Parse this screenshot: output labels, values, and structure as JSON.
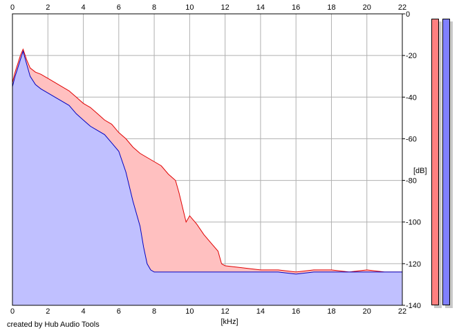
{
  "chart_data": {
    "type": "area",
    "title": "",
    "xlabel": "[kHz]",
    "ylabel": "[dB]",
    "xlim": [
      0,
      22
    ],
    "ylim": [
      -140,
      0
    ],
    "x_ticks": [
      0,
      2,
      4,
      6,
      8,
      10,
      12,
      14,
      16,
      18,
      20,
      22
    ],
    "y_ticks": [
      0,
      -20,
      -40,
      -60,
      -80,
      -100,
      -120,
      -140
    ],
    "grid": true,
    "series": [
      {
        "color": "#e00000",
        "fill": "#ffc0c0",
        "x": [
          0,
          0.15,
          0.3,
          0.45,
          0.6,
          0.8,
          1.0,
          1.3,
          1.6,
          2.0,
          2.4,
          2.8,
          3.2,
          3.6,
          4.0,
          4.4,
          4.8,
          5.2,
          5.6,
          6.0,
          6.4,
          6.8,
          7.2,
          7.6,
          8.0,
          8.4,
          8.8,
          9.2,
          9.4,
          9.6,
          9.8,
          10.0,
          10.4,
          10.8,
          11.2,
          11.6,
          11.8,
          12.0,
          13,
          14,
          15,
          16,
          17,
          18,
          19,
          20,
          21,
          22
        ],
        "values": [
          -33,
          -28,
          -24,
          -20,
          -17,
          -22,
          -26,
          -28,
          -29,
          -31,
          -33,
          -35,
          -37,
          -40,
          -43,
          -45,
          -48,
          -51,
          -53,
          -57,
          -60,
          -64,
          -67,
          -69,
          -71,
          -73,
          -77,
          -80,
          -86,
          -93,
          -100,
          -97,
          -101,
          -106,
          -110,
          -114,
          -120,
          -121,
          -122,
          -123,
          -123,
          -124,
          -123,
          -123,
          -124,
          -123,
          -124,
          -124
        ]
      },
      {
        "color": "#0000c0",
        "fill": "#c0c0ff",
        "x": [
          0,
          0.15,
          0.3,
          0.45,
          0.6,
          0.8,
          1.0,
          1.3,
          1.6,
          2.0,
          2.4,
          2.8,
          3.2,
          3.6,
          4.0,
          4.4,
          4.8,
          5.2,
          5.6,
          6.0,
          6.4,
          6.8,
          7.2,
          7.4,
          7.6,
          7.8,
          8.0,
          8.5,
          9,
          10,
          11,
          12,
          13,
          14,
          15,
          16,
          17,
          18,
          19,
          20,
          21,
          22
        ],
        "values": [
          -35,
          -30,
          -26,
          -22,
          -18,
          -24,
          -30,
          -34,
          -36,
          -38,
          -40,
          -42,
          -44,
          -48,
          -51,
          -54,
          -56,
          -58,
          -62,
          -66,
          -76,
          -90,
          -102,
          -112,
          -120,
          -123,
          -124,
          -124,
          -124,
          -124,
          -124,
          -124,
          -124,
          -124,
          -124,
          -125,
          -124,
          -124,
          -124,
          -124,
          -124,
          -124
        ]
      }
    ]
  },
  "meters": [
    {
      "name": "meter-left",
      "fill": "#ff8080"
    },
    {
      "name": "meter-right",
      "fill": "#8080ff"
    }
  ],
  "credit": "created by Hub Audio Tools"
}
